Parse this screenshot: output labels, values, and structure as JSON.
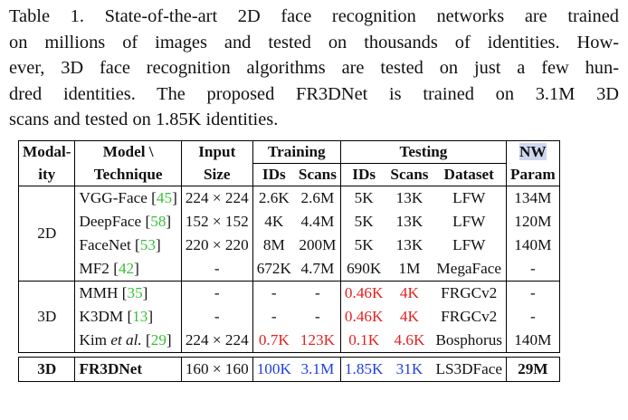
{
  "caption": {
    "lines": [
      "Table 1. State-of-the-art 2D face recognition networks are trained",
      "on millions of images and tested on thousands of identities. How-",
      "ever, 3D face recognition algorithms are tested on just a few hun-",
      "dred identities.  The proposed FR3DNet is trained on 3.1M 3D",
      "scans and tested on 1.85K identities."
    ]
  },
  "header": {
    "modality": [
      "Modal-",
      "ity"
    ],
    "model": [
      "Model \\",
      "Technique"
    ],
    "input": [
      "Input",
      "Size"
    ],
    "training": "Training",
    "testing": "Testing",
    "nw": [
      "NW",
      "Param"
    ],
    "train_ids": "IDs",
    "train_scans": "Scans",
    "test_ids": "IDs",
    "test_scans": "Scans",
    "test_dataset": "Dataset"
  },
  "groups": [
    {
      "modality": "2D",
      "rows": [
        {
          "name": "VGG-Face ",
          "cite": "45",
          "input": "224 × 224",
          "train_ids": "2.6K",
          "train_scans": "2.6M",
          "test_ids": "5K",
          "test_scans": "13K",
          "dataset": "LFW",
          "param": "134M"
        },
        {
          "name": "DeepFace ",
          "cite": "58",
          "input": "152 × 152",
          "train_ids": "4K",
          "train_scans": "4.4M",
          "test_ids": "5K",
          "test_scans": "13K",
          "dataset": "LFW",
          "param": "120M"
        },
        {
          "name": "FaceNet ",
          "cite": "53",
          "input": "220 × 220",
          "train_ids": "8M",
          "train_scans": "200M",
          "test_ids": "5K",
          "test_scans": "13K",
          "dataset": "LFW",
          "param": "140M"
        },
        {
          "name": "MF2 ",
          "cite": "42",
          "input": "-",
          "train_ids": "672K",
          "train_scans": "4.7M",
          "test_ids": "690K",
          "test_scans": "1M",
          "dataset": "MegaFace",
          "param": "-"
        }
      ]
    },
    {
      "modality": "3D",
      "rows": [
        {
          "name": "MMH ",
          "cite": "35",
          "input": "-",
          "train_ids": "-",
          "train_scans": "-",
          "test_ids": "0.46K",
          "test_scans": "4K",
          "dataset": "FRGCv2",
          "param": "-"
        },
        {
          "name": "K3DM ",
          "cite": "13",
          "input": "-",
          "train_ids": "-",
          "train_scans": "-",
          "test_ids": "0.46K",
          "test_scans": "4K",
          "dataset": "FRGCv2",
          "param": "-"
        },
        {
          "name_pre": "Kim ",
          "name_em": "et al.",
          "name_post": " ",
          "cite": "29",
          "input": "224 × 224",
          "train_ids": "0.7K",
          "train_scans": "123K",
          "test_ids": "0.1K",
          "test_scans": "4.6K",
          "dataset": "Bosphorus",
          "param": "140M"
        }
      ]
    }
  ],
  "proposed": {
    "modality": "3D",
    "name": "FR3DNet",
    "input": "160 × 160",
    "train_ids": "100K",
    "train_scans": "3.1M",
    "test_ids": "1.85K",
    "test_scans": "31K",
    "dataset": "LS3DFace",
    "param": "29M"
  },
  "colors": {
    "citation": "#3bbf3b",
    "red": "#e22222",
    "blue": "#1f3fe0",
    "highlight": "#cfd7ef"
  }
}
